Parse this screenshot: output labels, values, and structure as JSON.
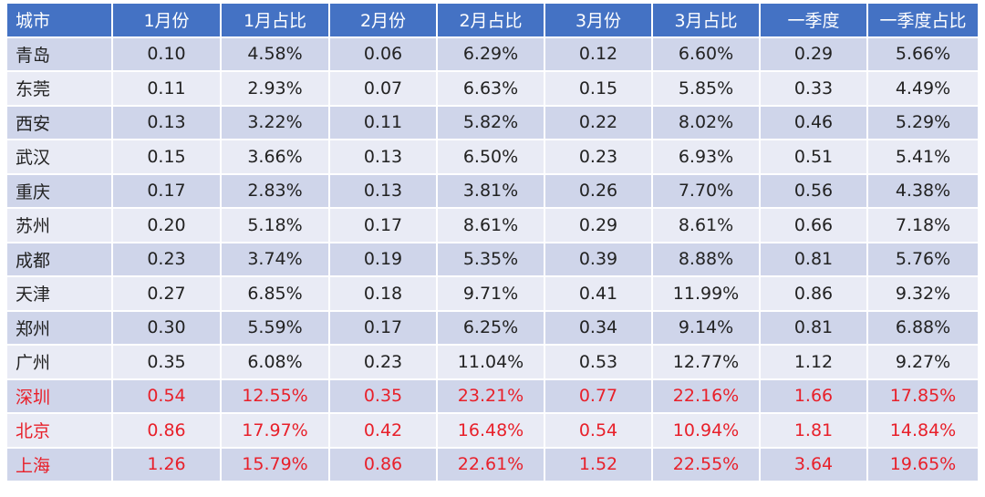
{
  "table": {
    "headers": [
      "城市",
      "1月份",
      "1月占比",
      "2月份",
      "2月占比",
      "3月份",
      "3月占比",
      "一季度",
      "一季度占比"
    ],
    "rows": [
      {
        "cells": [
          "青岛",
          "0.10",
          "4.58%",
          "0.06",
          "6.29%",
          "0.12",
          "6.60%",
          "0.29",
          "5.66%"
        ],
        "highlight": false
      },
      {
        "cells": [
          "东莞",
          "0.11",
          "2.93%",
          "0.07",
          "6.63%",
          "0.15",
          "5.85%",
          "0.33",
          "4.49%"
        ],
        "highlight": false
      },
      {
        "cells": [
          "西安",
          "0.13",
          "3.22%",
          "0.11",
          "5.82%",
          "0.22",
          "8.02%",
          "0.46",
          "5.29%"
        ],
        "highlight": false
      },
      {
        "cells": [
          "武汉",
          "0.15",
          "3.66%",
          "0.13",
          "6.50%",
          "0.23",
          "6.93%",
          "0.51",
          "5.41%"
        ],
        "highlight": false
      },
      {
        "cells": [
          "重庆",
          "0.17",
          "2.83%",
          "0.13",
          "3.81%",
          "0.26",
          "7.70%",
          "0.56",
          "4.38%"
        ],
        "highlight": false
      },
      {
        "cells": [
          "苏州",
          "0.20",
          "5.18%",
          "0.17",
          "8.61%",
          "0.29",
          "8.61%",
          "0.66",
          "7.18%"
        ],
        "highlight": false
      },
      {
        "cells": [
          "成都",
          "0.23",
          "3.74%",
          "0.19",
          "5.35%",
          "0.39",
          "8.88%",
          "0.81",
          "5.76%"
        ],
        "highlight": false
      },
      {
        "cells": [
          "天津",
          "0.27",
          "6.85%",
          "0.18",
          "9.71%",
          "0.41",
          "11.99%",
          "0.86",
          "9.32%"
        ],
        "highlight": false
      },
      {
        "cells": [
          "郑州",
          "0.30",
          "5.59%",
          "0.17",
          "6.25%",
          "0.34",
          "9.14%",
          "0.81",
          "6.88%"
        ],
        "highlight": false
      },
      {
        "cells": [
          "广州",
          "0.35",
          "6.08%",
          "0.23",
          "11.04%",
          "0.53",
          "12.77%",
          "1.12",
          "9.27%"
        ],
        "highlight": false
      },
      {
        "cells": [
          "深圳",
          "0.54",
          "12.55%",
          "0.35",
          "23.21%",
          "0.77",
          "22.16%",
          "1.66",
          "17.85%"
        ],
        "highlight": true
      },
      {
        "cells": [
          "北京",
          "0.86",
          "17.97%",
          "0.42",
          "16.48%",
          "0.54",
          "10.94%",
          "1.81",
          "14.84%"
        ],
        "highlight": true
      },
      {
        "cells": [
          "上海",
          "1.26",
          "15.79%",
          "0.86",
          "22.61%",
          "1.52",
          "22.55%",
          "3.64",
          "19.65%"
        ],
        "highlight": true
      }
    ]
  },
  "colors": {
    "header_bg": "#4472c4",
    "header_text": "#ffffff",
    "row_band_dark": "#cfd5ea",
    "row_band_light": "#e9ebf5",
    "text": "#222222",
    "highlight_text": "#e8202a"
  }
}
